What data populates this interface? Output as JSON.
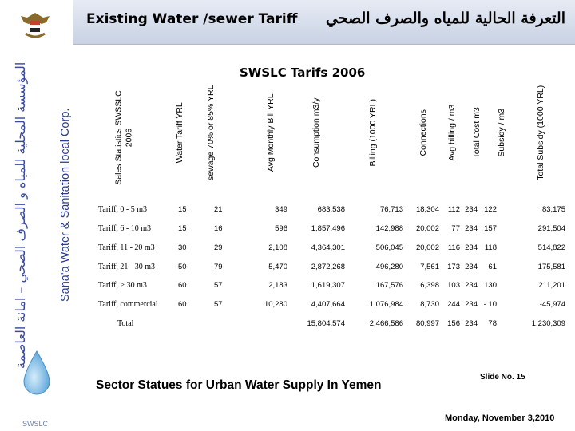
{
  "sidebar": {
    "org_en": "Sana'a Water & Sanitation local Corp.",
    "org_ar": "المؤسسة المحلية للمياه و الصرف الصحي – امانة العاصمة",
    "logo_label": "SWSLC"
  },
  "header": {
    "title_en": "Existing Water /sewer Tariff",
    "title_ar": "التعرفة الحالية للمياه والصرف الصحي"
  },
  "table": {
    "title": "SWSLC Tarifs 2006",
    "headers": [
      "Sales Statistics SWSSLC 2006",
      "Water Tariff YRL",
      "sewage 70% or 85% YRL",
      "Avg Monthly Bill YRL",
      "Consumption m3/y",
      "Billing (1000 YRL)",
      "Connections",
      "Avg billing / m3",
      "Total Cost m3",
      "Subsidy / m3",
      "Total Subsidy (1000 YRL)"
    ],
    "rows": [
      {
        "label": "Tariff, 0 - 5 m3",
        "values": [
          "15",
          "21",
          "349",
          "683,538",
          "76,713",
          "18,304",
          "112",
          "234",
          "122",
          "83,175"
        ]
      },
      {
        "label": "Tariff, 6 - 10 m3",
        "values": [
          "15",
          "16",
          "596",
          "1,857,496",
          "142,988",
          "20,002",
          "77",
          "234",
          "157",
          "291,504"
        ]
      },
      {
        "label": "Tariff, 11 - 20 m3",
        "values": [
          "30",
          "29",
          "2,108",
          "4,364,301",
          "506,045",
          "20,002",
          "116",
          "234",
          "118",
          "514,822"
        ]
      },
      {
        "label": "Tariff, 21 - 30 m3",
        "values": [
          "50",
          "79",
          "5,470",
          "2,872,268",
          "496,280",
          "7,561",
          "173",
          "234",
          "61",
          "175,581"
        ]
      },
      {
        "label": "Tariff, > 30 m3",
        "values": [
          "60",
          "57",
          "2,183",
          "1,619,307",
          "167,576",
          "6,398",
          "103",
          "234",
          "130",
          "211,201"
        ]
      },
      {
        "label": "Tariff, commercial",
        "values": [
          "60",
          "57",
          "10,280",
          "4,407,664",
          "1,076,984",
          "8,730",
          "244",
          "234",
          "- 10",
          "-45,974"
        ]
      },
      {
        "label": "Total",
        "values": [
          "",
          "",
          "",
          "15,804,574",
          "2,466,586",
          "80,997",
          "156",
          "234",
          "78",
          "1,230,309"
        ]
      }
    ]
  },
  "footer": {
    "text": "Sector Statues for Urban Water Supply In Yemen",
    "slide_no": "Slide No. 15",
    "date": "Monday, November 3,2010"
  },
  "colors": {
    "header_bg": "#d4dcea",
    "sidebar_text": "#2a3d8f",
    "drop": "#5fa8dc"
  }
}
